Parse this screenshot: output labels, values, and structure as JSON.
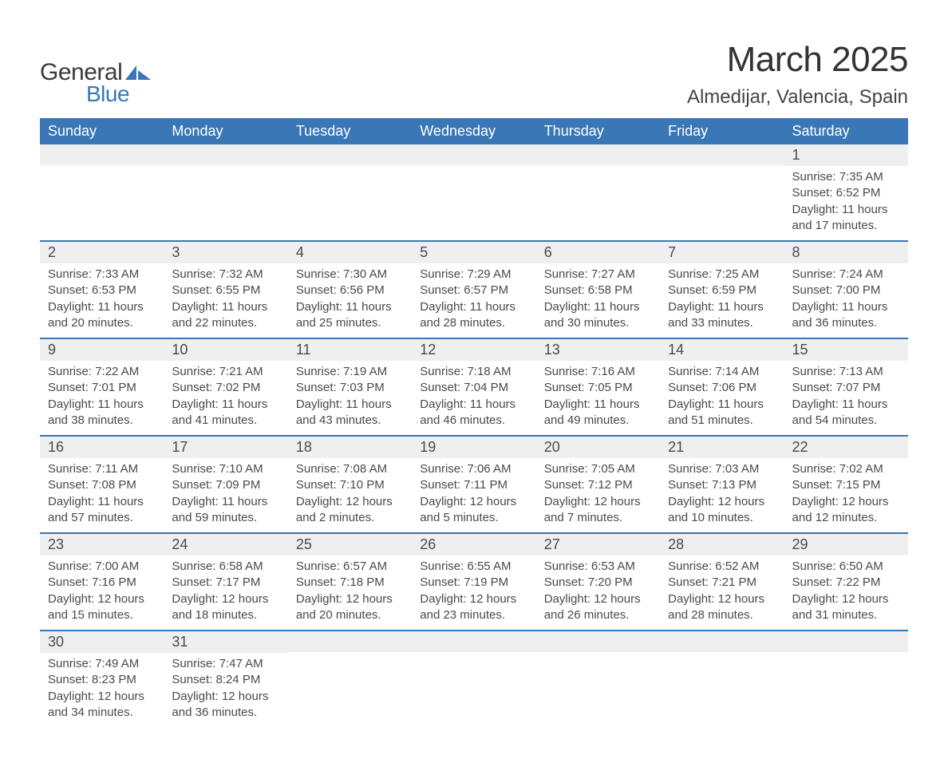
{
  "brand": {
    "general": "General",
    "blue": "Blue",
    "accent_color": "#3977b7"
  },
  "title": {
    "month": "March 2025",
    "location": "Almedijar, Valencia, Spain"
  },
  "weekdays": [
    "Sunday",
    "Monday",
    "Tuesday",
    "Wednesday",
    "Thursday",
    "Friday",
    "Saturday"
  ],
  "calendar": {
    "type": "table",
    "header_bg": "#3977b7",
    "header_fg": "#ffffff",
    "daynum_bg": "#efefef",
    "row_divider_color": "#3977b7",
    "text_color": "#4a4a4a",
    "weeks": [
      [
        {
          "day": "",
          "lines": []
        },
        {
          "day": "",
          "lines": []
        },
        {
          "day": "",
          "lines": []
        },
        {
          "day": "",
          "lines": []
        },
        {
          "day": "",
          "lines": []
        },
        {
          "day": "",
          "lines": []
        },
        {
          "day": "1",
          "lines": [
            "Sunrise: 7:35 AM",
            "Sunset: 6:52 PM",
            "Daylight: 11 hours and 17 minutes."
          ]
        }
      ],
      [
        {
          "day": "2",
          "lines": [
            "Sunrise: 7:33 AM",
            "Sunset: 6:53 PM",
            "Daylight: 11 hours and 20 minutes."
          ]
        },
        {
          "day": "3",
          "lines": [
            "Sunrise: 7:32 AM",
            "Sunset: 6:55 PM",
            "Daylight: 11 hours and 22 minutes."
          ]
        },
        {
          "day": "4",
          "lines": [
            "Sunrise: 7:30 AM",
            "Sunset: 6:56 PM",
            "Daylight: 11 hours and 25 minutes."
          ]
        },
        {
          "day": "5",
          "lines": [
            "Sunrise: 7:29 AM",
            "Sunset: 6:57 PM",
            "Daylight: 11 hours and 28 minutes."
          ]
        },
        {
          "day": "6",
          "lines": [
            "Sunrise: 7:27 AM",
            "Sunset: 6:58 PM",
            "Daylight: 11 hours and 30 minutes."
          ]
        },
        {
          "day": "7",
          "lines": [
            "Sunrise: 7:25 AM",
            "Sunset: 6:59 PM",
            "Daylight: 11 hours and 33 minutes."
          ]
        },
        {
          "day": "8",
          "lines": [
            "Sunrise: 7:24 AM",
            "Sunset: 7:00 PM",
            "Daylight: 11 hours and 36 minutes."
          ]
        }
      ],
      [
        {
          "day": "9",
          "lines": [
            "Sunrise: 7:22 AM",
            "Sunset: 7:01 PM",
            "Daylight: 11 hours and 38 minutes."
          ]
        },
        {
          "day": "10",
          "lines": [
            "Sunrise: 7:21 AM",
            "Sunset: 7:02 PM",
            "Daylight: 11 hours and 41 minutes."
          ]
        },
        {
          "day": "11",
          "lines": [
            "Sunrise: 7:19 AM",
            "Sunset: 7:03 PM",
            "Daylight: 11 hours and 43 minutes."
          ]
        },
        {
          "day": "12",
          "lines": [
            "Sunrise: 7:18 AM",
            "Sunset: 7:04 PM",
            "Daylight: 11 hours and 46 minutes."
          ]
        },
        {
          "day": "13",
          "lines": [
            "Sunrise: 7:16 AM",
            "Sunset: 7:05 PM",
            "Daylight: 11 hours and 49 minutes."
          ]
        },
        {
          "day": "14",
          "lines": [
            "Sunrise: 7:14 AM",
            "Sunset: 7:06 PM",
            "Daylight: 11 hours and 51 minutes."
          ]
        },
        {
          "day": "15",
          "lines": [
            "Sunrise: 7:13 AM",
            "Sunset: 7:07 PM",
            "Daylight: 11 hours and 54 minutes."
          ]
        }
      ],
      [
        {
          "day": "16",
          "lines": [
            "Sunrise: 7:11 AM",
            "Sunset: 7:08 PM",
            "Daylight: 11 hours and 57 minutes."
          ]
        },
        {
          "day": "17",
          "lines": [
            "Sunrise: 7:10 AM",
            "Sunset: 7:09 PM",
            "Daylight: 11 hours and 59 minutes."
          ]
        },
        {
          "day": "18",
          "lines": [
            "Sunrise: 7:08 AM",
            "Sunset: 7:10 PM",
            "Daylight: 12 hours and 2 minutes."
          ]
        },
        {
          "day": "19",
          "lines": [
            "Sunrise: 7:06 AM",
            "Sunset: 7:11 PM",
            "Daylight: 12 hours and 5 minutes."
          ]
        },
        {
          "day": "20",
          "lines": [
            "Sunrise: 7:05 AM",
            "Sunset: 7:12 PM",
            "Daylight: 12 hours and 7 minutes."
          ]
        },
        {
          "day": "21",
          "lines": [
            "Sunrise: 7:03 AM",
            "Sunset: 7:13 PM",
            "Daylight: 12 hours and 10 minutes."
          ]
        },
        {
          "day": "22",
          "lines": [
            "Sunrise: 7:02 AM",
            "Sunset: 7:15 PM",
            "Daylight: 12 hours and 12 minutes."
          ]
        }
      ],
      [
        {
          "day": "23",
          "lines": [
            "Sunrise: 7:00 AM",
            "Sunset: 7:16 PM",
            "Daylight: 12 hours and 15 minutes."
          ]
        },
        {
          "day": "24",
          "lines": [
            "Sunrise: 6:58 AM",
            "Sunset: 7:17 PM",
            "Daylight: 12 hours and 18 minutes."
          ]
        },
        {
          "day": "25",
          "lines": [
            "Sunrise: 6:57 AM",
            "Sunset: 7:18 PM",
            "Daylight: 12 hours and 20 minutes."
          ]
        },
        {
          "day": "26",
          "lines": [
            "Sunrise: 6:55 AM",
            "Sunset: 7:19 PM",
            "Daylight: 12 hours and 23 minutes."
          ]
        },
        {
          "day": "27",
          "lines": [
            "Sunrise: 6:53 AM",
            "Sunset: 7:20 PM",
            "Daylight: 12 hours and 26 minutes."
          ]
        },
        {
          "day": "28",
          "lines": [
            "Sunrise: 6:52 AM",
            "Sunset: 7:21 PM",
            "Daylight: 12 hours and 28 minutes."
          ]
        },
        {
          "day": "29",
          "lines": [
            "Sunrise: 6:50 AM",
            "Sunset: 7:22 PM",
            "Daylight: 12 hours and 31 minutes."
          ]
        }
      ],
      [
        {
          "day": "30",
          "lines": [
            "Sunrise: 7:49 AM",
            "Sunset: 8:23 PM",
            "Daylight: 12 hours and 34 minutes."
          ]
        },
        {
          "day": "31",
          "lines": [
            "Sunrise: 7:47 AM",
            "Sunset: 8:24 PM",
            "Daylight: 12 hours and 36 minutes."
          ]
        },
        {
          "day": "",
          "lines": []
        },
        {
          "day": "",
          "lines": []
        },
        {
          "day": "",
          "lines": []
        },
        {
          "day": "",
          "lines": []
        },
        {
          "day": "",
          "lines": []
        }
      ]
    ]
  }
}
